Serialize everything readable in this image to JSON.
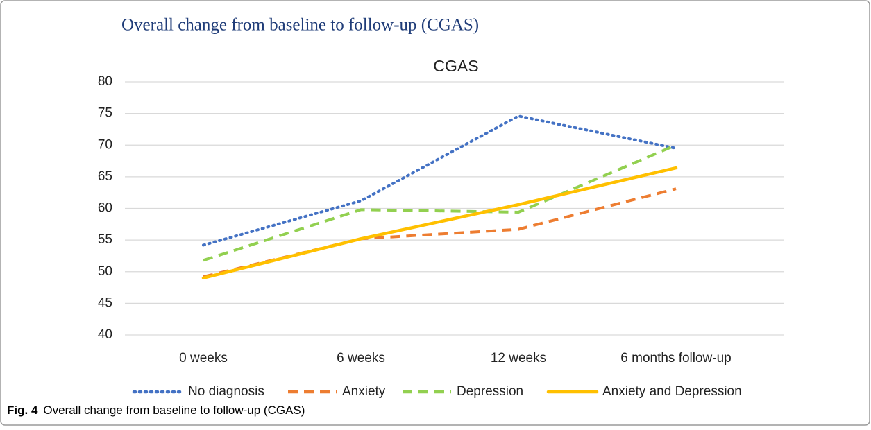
{
  "header": {
    "title": "Overall change from baseline to follow-up (CGAS)"
  },
  "chart_data": {
    "type": "line",
    "title": "CGAS",
    "categories": [
      "0 weeks",
      "6 weeks",
      "12 weeks",
      "6 months follow-up"
    ],
    "series": [
      {
        "name": "No diagnosis",
        "color": "#4472c4",
        "style": "dotted",
        "values": [
          54.2,
          61.2,
          74.6,
          69.5
        ]
      },
      {
        "name": "Anxiety",
        "color": "#ed7d31",
        "style": "dashed",
        "values": [
          49.2,
          55.2,
          56.7,
          63.1
        ]
      },
      {
        "name": "Depression",
        "color": "#92d050",
        "style": "dashed",
        "values": [
          51.8,
          59.8,
          59.4,
          70
        ]
      },
      {
        "name": "Anxiety and Depression",
        "color": "#ffc000",
        "style": "solid",
        "values": [
          49,
          55.2,
          60.6,
          66.4
        ]
      }
    ],
    "ylim": [
      40,
      80
    ],
    "yticks": [
      40,
      45,
      50,
      55,
      60,
      65,
      70,
      75,
      80
    ],
    "grid": true,
    "legend": "bottom"
  },
  "caption": {
    "label": "Fig. 4",
    "text": "Overall change from baseline to follow-up (CGAS)"
  }
}
